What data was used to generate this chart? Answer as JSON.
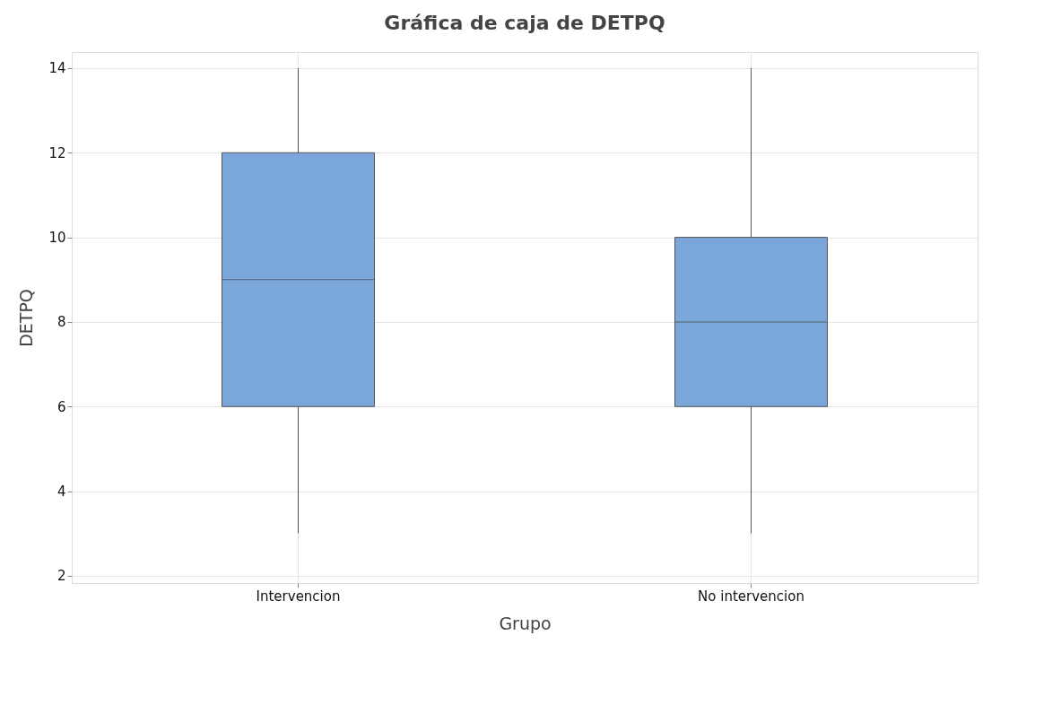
{
  "chart_data": {
    "type": "box",
    "title": "Gráfica de caja de DETPQ",
    "xlabel": "Grupo",
    "ylabel": "DETPQ",
    "categories": [
      "Intervencion",
      "No intervencion"
    ],
    "series": [
      {
        "color": "#7ba6d9",
        "boxes": [
          {
            "low": 3,
            "q1": 6,
            "median": 9,
            "q3": 12,
            "high": 14
          },
          {
            "low": 3,
            "q1": 6,
            "median": 8,
            "q3": 10,
            "high": 14
          }
        ]
      }
    ],
    "ylim": [
      1.83,
      14.38
    ],
    "yticks": [
      2,
      4,
      6,
      8,
      10,
      12,
      14
    ],
    "grid": true
  }
}
